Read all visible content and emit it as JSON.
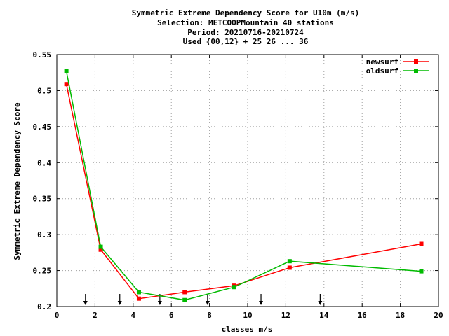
{
  "chart_data": {
    "type": "line",
    "title_lines": [
      "Symmetric Extreme Dependency Score  for U10m (m/s)",
      "Selection: METCOOPMountain     40 stations",
      "Period: 20210716-20210724",
      "Used {00,12} + 25 26 ... 36"
    ],
    "xlabel": "classes m/s",
    "ylabel": "Symmetric Extreme Dependency Score",
    "xlim": [
      0,
      20
    ],
    "ylim": [
      0.2,
      0.55
    ],
    "x_ticks": [
      0,
      2,
      4,
      6,
      8,
      10,
      12,
      14,
      16,
      18,
      20
    ],
    "y_ticks": [
      0.2,
      0.25,
      0.3,
      0.35,
      0.4,
      0.45,
      0.5,
      0.55
    ],
    "y_tick_labels": [
      "0.2",
      "0.25",
      "0.3",
      "0.35",
      "0.4",
      "0.45",
      "0.5",
      "0.55"
    ],
    "grid": true,
    "legend_position": "top-right",
    "series": [
      {
        "name": "newsurf",
        "color": "#ff0000",
        "x": [
          0.5,
          2.3,
          4.3,
          6.7,
          9.3,
          12.2,
          19.1
        ],
        "values": [
          0.509,
          0.279,
          0.211,
          0.22,
          0.229,
          0.254,
          0.287
        ]
      },
      {
        "name": "oldsurf",
        "color": "#00bb00",
        "x": [
          0.5,
          2.3,
          4.3,
          6.7,
          9.3,
          12.2,
          19.1
        ],
        "values": [
          0.527,
          0.283,
          0.22,
          0.209,
          0.227,
          0.263,
          0.249
        ]
      }
    ],
    "class_boundary_arrows_x": [
      1.5,
      3.3,
      5.4,
      7.9,
      10.7,
      13.8
    ]
  }
}
